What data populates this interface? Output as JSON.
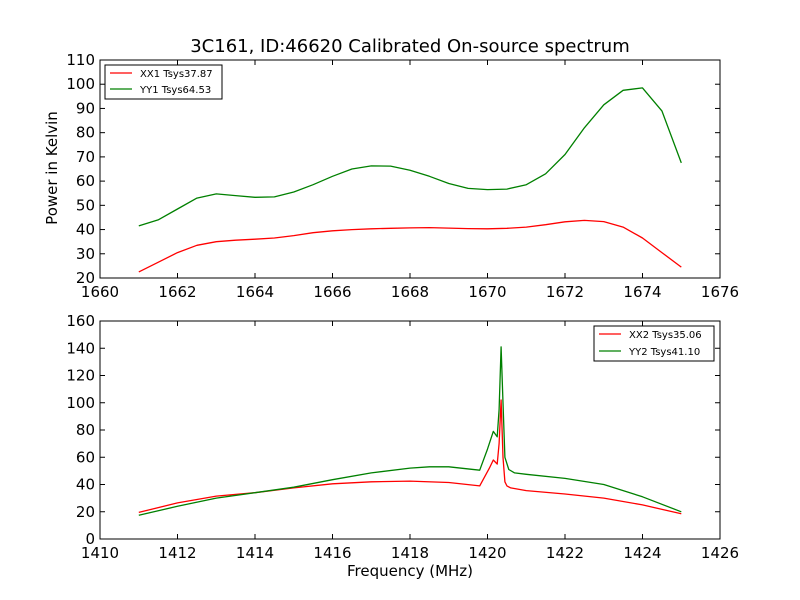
{
  "chart_data": [
    {
      "type": "line",
      "title": "3C161, ID:46620 Calibrated On-source spectrum",
      "xlabel": "",
      "ylabel": "Power in Kelvin",
      "xlim": [
        1660,
        1676
      ],
      "ylim": [
        20,
        110
      ],
      "xticks": [
        "1660",
        "1662",
        "1664",
        "1666",
        "1668",
        "1670",
        "1672",
        "1674",
        "1676"
      ],
      "yticks": [
        "20",
        "30",
        "40",
        "50",
        "60",
        "70",
        "80",
        "90",
        "100",
        "110"
      ],
      "legend_position": "top-left",
      "series": [
        {
          "name": "XX1 Tsys37.87",
          "color": "#ff0000",
          "x": [
            1661.0,
            1661.5,
            1662.0,
            1662.5,
            1663.0,
            1663.5,
            1664.0,
            1664.5,
            1665.0,
            1665.5,
            1666.0,
            1666.5,
            1667.0,
            1667.5,
            1668.0,
            1668.5,
            1669.0,
            1669.5,
            1670.0,
            1670.5,
            1671.0,
            1671.5,
            1672.0,
            1672.5,
            1673.0,
            1673.5,
            1674.0,
            1674.5,
            1675.0
          ],
          "y": [
            22.5,
            26.5,
            30.5,
            33.5,
            35.0,
            35.6,
            36.0,
            36.5,
            37.5,
            38.7,
            39.5,
            40.0,
            40.3,
            40.5,
            40.7,
            40.8,
            40.6,
            40.4,
            40.3,
            40.5,
            41.0,
            42.0,
            43.2,
            43.8,
            43.3,
            41.0,
            36.5,
            30.5,
            24.5
          ]
        },
        {
          "name": "YY1 Tsys64.53",
          "color": "#008000",
          "x": [
            1661.0,
            1661.5,
            1662.0,
            1662.5,
            1663.0,
            1663.5,
            1664.0,
            1664.5,
            1665.0,
            1665.5,
            1666.0,
            1666.5,
            1667.0,
            1667.5,
            1668.0,
            1668.5,
            1669.0,
            1669.5,
            1670.0,
            1670.5,
            1671.0,
            1671.5,
            1672.0,
            1672.5,
            1673.0,
            1673.5,
            1674.0,
            1674.5,
            1675.0
          ],
          "y": [
            41.5,
            44.0,
            48.5,
            53.0,
            54.7,
            54.0,
            53.3,
            53.5,
            55.5,
            58.5,
            62.0,
            65.0,
            66.3,
            66.2,
            64.5,
            62.0,
            59.0,
            57.0,
            56.5,
            56.7,
            58.5,
            63.0,
            71.0,
            82.0,
            91.5,
            97.5,
            98.5,
            89.0,
            67.5
          ]
        }
      ]
    },
    {
      "type": "line",
      "title": "",
      "xlabel": "Frequency (MHz)",
      "ylabel": "",
      "xlim": [
        1410,
        1426
      ],
      "ylim": [
        0,
        160
      ],
      "xticks": [
        "1410",
        "1412",
        "1414",
        "1416",
        "1418",
        "1420",
        "1422",
        "1424",
        "1426"
      ],
      "yticks": [
        "0",
        "20",
        "40",
        "60",
        "80",
        "100",
        "120",
        "140",
        "160"
      ],
      "legend_position": "top-right",
      "series": [
        {
          "name": "XX2 Tsys35.06",
          "color": "#ff0000",
          "x": [
            1411.0,
            1412.0,
            1413.0,
            1414.0,
            1415.0,
            1416.0,
            1417.0,
            1418.0,
            1419.0,
            1419.8,
            1420.05,
            1420.15,
            1420.25,
            1420.3,
            1420.35,
            1420.4,
            1420.45,
            1420.5,
            1420.6,
            1421.0,
            1422.0,
            1423.0,
            1424.0,
            1425.0
          ],
          "y": [
            19.5,
            26.5,
            31.5,
            34.0,
            37.5,
            40.5,
            42.0,
            42.5,
            41.5,
            39.0,
            52.0,
            58.0,
            55.0,
            70.0,
            102.0,
            60.0,
            42.0,
            39.0,
            37.5,
            35.5,
            33.0,
            30.0,
            25.0,
            18.5
          ]
        },
        {
          "name": "YY2 Tsys41.10",
          "color": "#008000",
          "x": [
            1411.0,
            1412.0,
            1413.0,
            1414.0,
            1415.0,
            1416.0,
            1417.0,
            1418.0,
            1418.5,
            1419.0,
            1419.8,
            1420.0,
            1420.15,
            1420.25,
            1420.3,
            1420.35,
            1420.4,
            1420.45,
            1420.55,
            1420.7,
            1421.0,
            1422.0,
            1423.0,
            1424.0,
            1425.0
          ],
          "y": [
            17.5,
            24.0,
            30.0,
            34.0,
            38.0,
            43.5,
            48.5,
            52.0,
            53.0,
            53.0,
            50.5,
            66.0,
            79.0,
            75.0,
            95.0,
            141.0,
            100.0,
            60.0,
            51.0,
            48.5,
            47.5,
            44.5,
            40.0,
            31.0,
            20.0
          ]
        }
      ]
    }
  ]
}
